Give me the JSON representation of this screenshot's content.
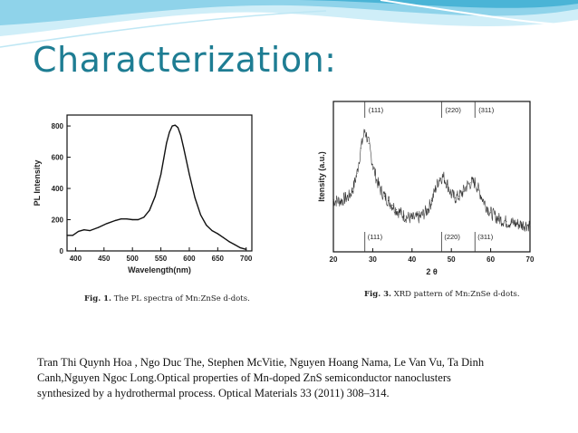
{
  "slide": {
    "title": "Characterization:",
    "title_color": "#1e7d93",
    "reference": "Tran Thi Quynh Hoa , Ngo Duc The, Stephen McVitie, Nguyen Hoang Nama, Le Van Vu, Ta Dinh\nCanh,Nguyen Ngoc Long.Optical properties of Mn-doped ZnS semiconductor nanoclusters\n  synthesized by a hydrothermal process. Optical Materials 33 (2011) 308–314.",
    "accent_colors": [
      "#4ab4d6",
      "#8fd3ea",
      "#cfeef8"
    ]
  },
  "chart_data": [
    {
      "type": "line",
      "caption_prefix": "Fig. 1.",
      "caption_text": " The PL spectra of Mn:ZnSe d-dots.",
      "xlabel": "Wavelength(nm)",
      "ylabel": "PL Intensity",
      "xlim": [
        385,
        710
      ],
      "ylim": [
        0,
        870
      ],
      "xticks": [
        400,
        450,
        500,
        550,
        600,
        650,
        700
      ],
      "yticks": [
        0,
        200,
        400,
        600,
        800
      ],
      "grid": false,
      "series": [
        {
          "x": [
            385,
            395,
            405,
            415,
            425,
            440,
            455,
            470,
            480,
            490,
            500,
            510,
            520,
            530,
            540,
            550,
            555,
            560,
            565,
            570,
            575,
            580,
            585,
            590,
            600,
            610,
            620,
            630,
            640,
            650,
            660,
            670,
            680,
            690,
            700
          ],
          "values": [
            100,
            100,
            125,
            135,
            130,
            150,
            175,
            195,
            205,
            205,
            200,
            200,
            215,
            260,
            350,
            490,
            590,
            690,
            760,
            800,
            805,
            790,
            740,
            660,
            490,
            340,
            230,
            165,
            130,
            110,
            85,
            60,
            40,
            20,
            10
          ]
        }
      ]
    },
    {
      "type": "line",
      "caption_prefix": "Fig. 3.",
      "caption_text": " XRD pattern of Mn:ZnSe d-dots.",
      "xlabel": "2 θ",
      "ylabel": "Itensity (a.u.)",
      "xlim": [
        20,
        70
      ],
      "ylim": [
        0,
        10
      ],
      "xticks": [
        20,
        30,
        40,
        50,
        60,
        70
      ],
      "yticks": [],
      "grid": false,
      "peak_labels_top": [
        {
          "x": 28,
          "text": "(111)"
        },
        {
          "x": 47.5,
          "text": "(220)"
        },
        {
          "x": 56,
          "text": "(311)"
        }
      ],
      "reference_labels": [
        {
          "x": 28,
          "text": "(111)"
        },
        {
          "x": 47.5,
          "text": "(220)"
        },
        {
          "x": 56,
          "text": "(311)"
        }
      ],
      "series": [
        {
          "x": [
            20,
            22,
            24,
            25,
            26,
            27,
            28,
            29,
            30,
            31,
            32,
            33,
            34,
            35,
            36,
            38,
            40,
            42,
            44,
            45,
            46,
            47,
            48,
            49,
            50,
            51,
            52,
            53,
            54,
            55,
            56,
            57,
            58,
            59,
            60,
            62,
            64,
            66,
            68,
            70
          ],
          "values": [
            3.4,
            3.4,
            3.7,
            4.2,
            5.2,
            6.9,
            8.1,
            7.2,
            5.8,
            4.8,
            4.1,
            3.7,
            3.4,
            3.1,
            2.8,
            2.4,
            2.2,
            2.3,
            2.8,
            3.4,
            4.2,
            4.9,
            5.0,
            4.5,
            3.8,
            3.6,
            3.7,
            4.0,
            4.4,
            4.6,
            4.6,
            4.1,
            3.5,
            3.0,
            2.6,
            2.2,
            2.0,
            1.9,
            1.8,
            1.8
          ]
        }
      ]
    }
  ]
}
